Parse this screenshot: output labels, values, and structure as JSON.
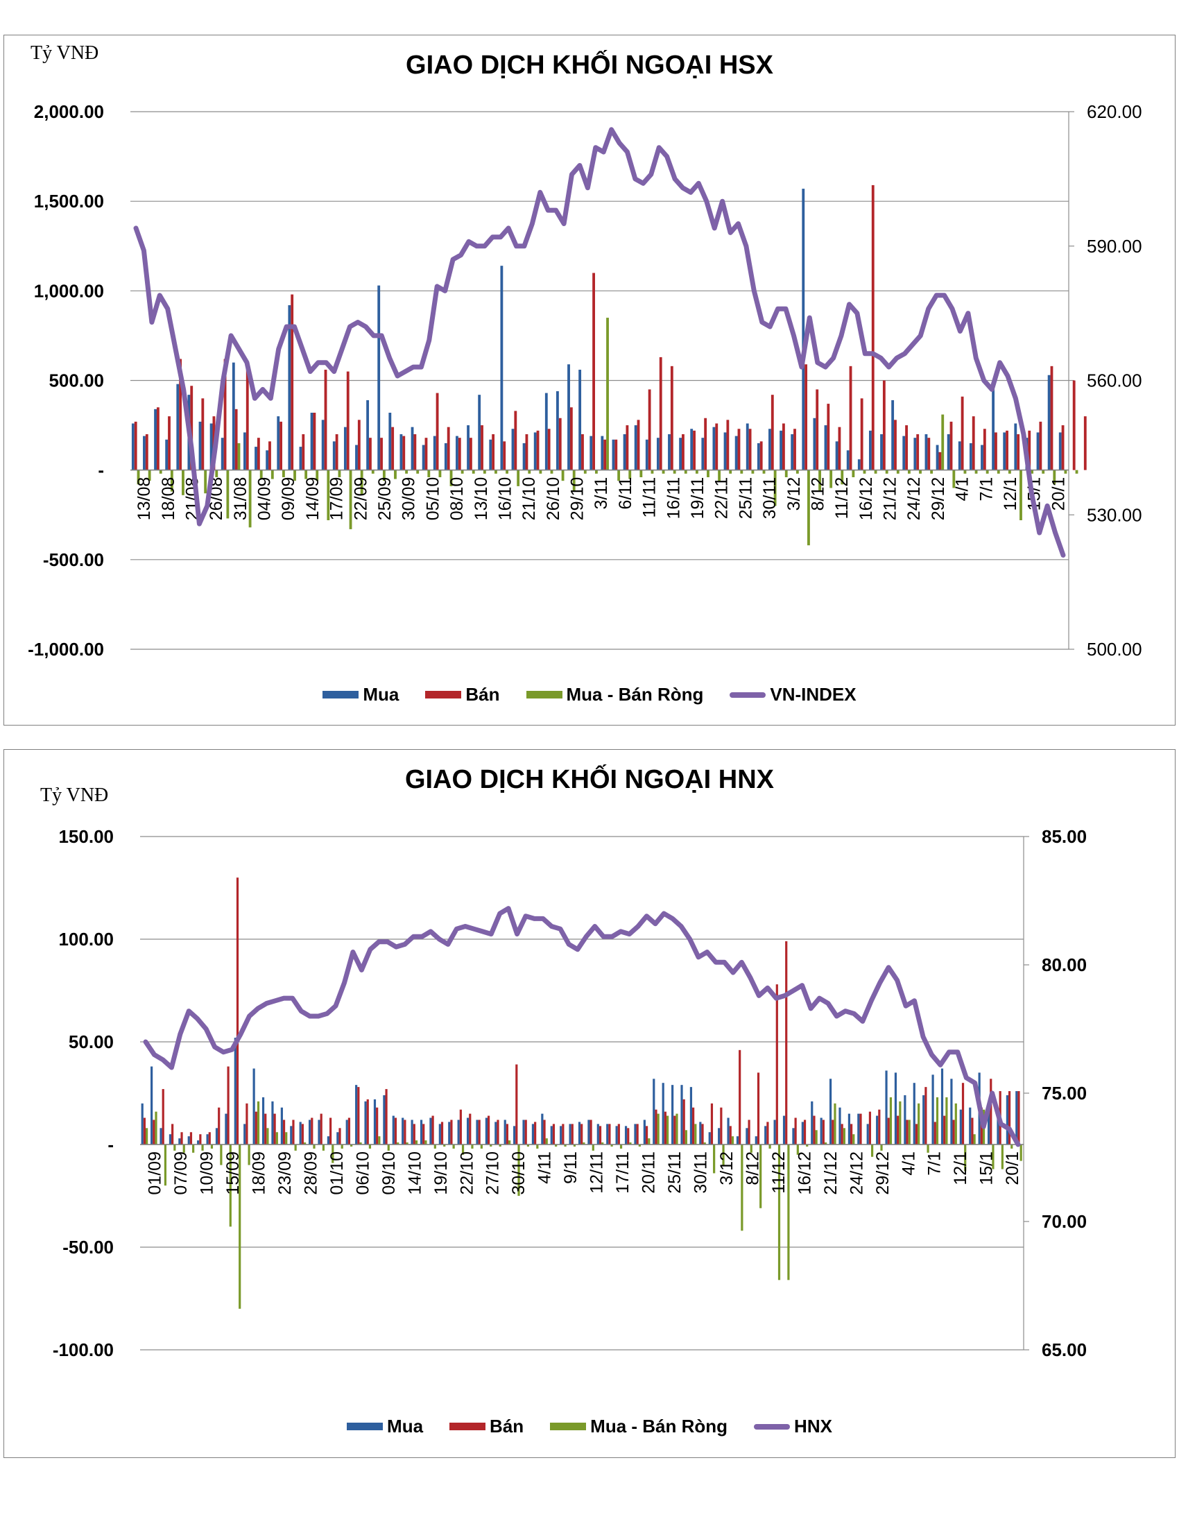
{
  "colors": {
    "buy": "#2e5f9e",
    "sell": "#b3262a",
    "net": "#7a9a2a",
    "index": "#7e62a8",
    "grid": "#8c8c8c"
  },
  "charts": [
    {
      "unit_label": "Tỷ VNĐ",
      "title": "GIAO DỊCH KHỐI NGOẠI HSX",
      "left_ticks": [
        "2,000.00",
        "1,500.00",
        "1,000.00",
        "500.00",
        "-",
        "-500.00",
        "-1,000.00"
      ],
      "right_ticks": [
        "620.00",
        "590.00",
        "560.00",
        "530.00",
        "500.00"
      ],
      "legend": {
        "buy": "Mua",
        "sell": "Bán",
        "net": "Mua - Bán Ròng",
        "index": "VN-INDEX"
      }
    },
    {
      "unit_label": "Tỷ VNĐ",
      "title": "GIAO DỊCH KHỐI NGOẠI HNX",
      "left_ticks": [
        "150.00",
        "100.00",
        "50.00",
        "-",
        "-50.00",
        "-100.00"
      ],
      "right_ticks": [
        "85.00",
        "80.00",
        "75.00",
        "70.00",
        "65.00"
      ],
      "legend": {
        "buy": "Mua",
        "sell": "Bán",
        "net": "Mua - Bán Ròng",
        "index": "HNX"
      }
    }
  ],
  "chart_data": [
    {
      "type": "bar",
      "title": "GIAO DỊCH KHỐI NGOẠI HSX",
      "ylabel": "Tỷ VNĐ",
      "ylim": [
        -1000,
        2000
      ],
      "y2lim": [
        500,
        620
      ],
      "legend_position": "bottom",
      "x_tick_labels": [
        "13/08",
        "18/08",
        "21/08",
        "26/08",
        "31/08",
        "04/09",
        "09/09",
        "14/09",
        "17/09",
        "22/09",
        "25/09",
        "30/09",
        "05/10",
        "08/10",
        "13/10",
        "16/10",
        "21/10",
        "26/10",
        "29/10",
        "3/11",
        "6/11",
        "11/11",
        "16/11",
        "19/11",
        "22/11",
        "25/11",
        "30/11",
        "3/12",
        "8/12",
        "11/12",
        "16/12",
        "21/12",
        "24/12",
        "29/12",
        "4/1",
        "7/1",
        "12/1",
        "15/1",
        "20/1"
      ],
      "series": [
        {
          "name": "Mua",
          "kind": "bar",
          "values": [
            260,
            190,
            340,
            170,
            480,
            420,
            270,
            260,
            180,
            600,
            210,
            130,
            110,
            300,
            920,
            130,
            320,
            280,
            160,
            240,
            140,
            390,
            1030,
            320,
            200,
            240,
            140,
            190,
            150,
            190,
            250,
            420,
            170,
            1140,
            230,
            150,
            210,
            430,
            440,
            590,
            560,
            190,
            190,
            170,
            200,
            250,
            170,
            180,
            200,
            180,
            230,
            180,
            240,
            210,
            190,
            260,
            150,
            230,
            220,
            200,
            1570,
            290,
            250,
            160,
            110,
            60,
            220,
            200,
            390,
            190,
            180,
            200,
            140,
            200,
            160,
            150,
            140,
            460,
            210,
            260,
            180,
            210,
            530,
            210
          ]
        },
        {
          "name": "Bán",
          "kind": "bar",
          "values": [
            270,
            200,
            350,
            300,
            620,
            470,
            400,
            300,
            620,
            340,
            590,
            180,
            160,
            270,
            980,
            200,
            320,
            560,
            200,
            550,
            280,
            180,
            180,
            240,
            190,
            200,
            180,
            430,
            240,
            180,
            180,
            250,
            200,
            160,
            330,
            200,
            220,
            230,
            290,
            350,
            200,
            1100,
            170,
            170,
            250,
            280,
            450,
            630,
            580,
            200,
            220,
            290,
            260,
            280,
            230,
            230,
            160,
            420,
            260,
            230,
            590,
            450,
            370,
            240,
            580,
            400,
            1590,
            500,
            280,
            250,
            200,
            180,
            100,
            270,
            410,
            300,
            230,
            210,
            220,
            200,
            220,
            270,
            580,
            250,
            500,
            300
          ]
        },
        {
          "name": "Mua - Bán Ròng",
          "kind": "bar",
          "values": [
            -80,
            -60,
            -20,
            -120,
            -140,
            -50,
            -130,
            -40,
            -270,
            150,
            -320,
            -50,
            -50,
            -40,
            -60,
            -50,
            -60,
            -280,
            -40,
            -330,
            -140,
            -20,
            -60,
            -50,
            -20,
            -20,
            -40,
            -40,
            -90,
            -20,
            -20,
            -20,
            -20,
            -20,
            -90,
            -20,
            -20,
            -20,
            -60,
            -120,
            -20,
            -20,
            850,
            -60,
            -50,
            -40,
            -20,
            -20,
            -20,
            -20,
            -20,
            -40,
            -60,
            -20,
            -20,
            -20,
            -20,
            -200,
            -40,
            -20,
            -420,
            -120,
            -100,
            -80,
            -40,
            -20,
            -20,
            -20,
            -20,
            -20,
            -20,
            -20,
            310,
            -100,
            -20,
            -20,
            -20,
            -20,
            -20,
            -280,
            -20,
            -20,
            -80,
            -20,
            -20
          ]
        },
        {
          "name": "VN-INDEX",
          "kind": "line",
          "axis": "right",
          "values": [
            594,
            589,
            573,
            579,
            576,
            567,
            558,
            545,
            528,
            532,
            545,
            560,
            570,
            567,
            564,
            556,
            558,
            556,
            567,
            572,
            572,
            567,
            562,
            564,
            564,
            562,
            567,
            572,
            573,
            572,
            570,
            570,
            565,
            561,
            562,
            563,
            563,
            569,
            581,
            580,
            587,
            588,
            591,
            590,
            590,
            592,
            592,
            594,
            590,
            590,
            595,
            602,
            598,
            598,
            595,
            606,
            608,
            603,
            612,
            611,
            616,
            613,
            611,
            605,
            604,
            606,
            612,
            610,
            605,
            603,
            602,
            604,
            600,
            594,
            600,
            593,
            595,
            590,
            580,
            573,
            572,
            576,
            576,
            570,
            563,
            574,
            564,
            563,
            565,
            570,
            577,
            575,
            566,
            566,
            565,
            563,
            565,
            566,
            568,
            570,
            576,
            579,
            579,
            576,
            571,
            575,
            565,
            560,
            558,
            564,
            561,
            556,
            548,
            535,
            526,
            532,
            526,
            521
          ]
        }
      ]
    },
    {
      "type": "bar",
      "title": "GIAO DỊCH KHỐI NGOẠI HNX",
      "ylabel": "Tỷ VNĐ",
      "ylim": [
        -100,
        150
      ],
      "y2lim": [
        65,
        85
      ],
      "legend_position": "bottom",
      "x_tick_labels": [
        "01/09",
        "07/09",
        "10/09",
        "15/09",
        "18/09",
        "23/09",
        "28/09",
        "01/10",
        "06/10",
        "09/10",
        "14/10",
        "19/10",
        "22/10",
        "27/10",
        "30/10",
        "4/11",
        "9/11",
        "12/11",
        "17/11",
        "20/11",
        "25/11",
        "30/11",
        "3/12",
        "8/12",
        "11/12",
        "16/12",
        "21/12",
        "24/12",
        "29/12",
        "4/1",
        "7/1",
        "12/1",
        "15/1",
        "20/1"
      ],
      "series": [
        {
          "name": "Mua",
          "kind": "bar",
          "values": [
            20,
            38,
            8,
            5,
            3,
            4,
            2,
            5,
            8,
            15,
            52,
            10,
            37,
            23,
            21,
            18,
            9,
            11,
            12,
            12,
            4,
            6,
            12,
            29,
            21,
            22,
            24,
            14,
            13,
            12,
            12,
            13,
            10,
            11,
            12,
            13,
            12,
            13,
            11,
            12,
            9,
            12,
            10,
            15,
            9,
            9,
            10,
            11,
            12,
            10,
            10,
            9,
            9,
            10,
            12,
            32,
            30,
            29,
            29,
            28,
            11,
            6,
            8,
            13,
            4,
            8,
            4,
            9,
            12,
            14,
            8,
            11,
            21,
            13,
            32,
            18,
            15,
            15,
            10,
            14,
            36,
            35,
            24,
            30,
            24,
            34,
            37,
            32,
            17,
            18,
            35,
            20,
            14,
            24,
            26
          ]
        },
        {
          "name": "Bán",
          "kind": "bar",
          "values": [
            13,
            12,
            27,
            10,
            6,
            6,
            5,
            6,
            18,
            38,
            130,
            20,
            16,
            15,
            15,
            12,
            12,
            10,
            13,
            15,
            13,
            8,
            13,
            28,
            22,
            18,
            27,
            13,
            12,
            10,
            10,
            14,
            11,
            12,
            17,
            15,
            12,
            14,
            12,
            10,
            39,
            12,
            11,
            12,
            10,
            10,
            10,
            10,
            12,
            9,
            10,
            10,
            8,
            10,
            9,
            17,
            16,
            14,
            22,
            18,
            10,
            20,
            18,
            9,
            46,
            12,
            35,
            11,
            78,
            99,
            13,
            12,
            14,
            12,
            12,
            10,
            10,
            15,
            16,
            17,
            13,
            14,
            12,
            10,
            28,
            11,
            14,
            12,
            30,
            13,
            18,
            32,
            26,
            26,
            26
          ]
        },
        {
          "name": "Mua - Bán Ròng",
          "kind": "bar",
          "values": [
            8,
            16,
            -20,
            -3,
            -4,
            -4,
            -3,
            -2,
            -10,
            -40,
            -80,
            -10,
            21,
            8,
            6,
            6,
            -3,
            1,
            -2,
            -3,
            -9,
            -2,
            -1,
            1,
            -2,
            4,
            -3,
            1,
            1,
            2,
            2,
            -2,
            -1,
            -2,
            -5,
            -2,
            -2,
            -1,
            -1,
            2,
            -25,
            -1,
            -2,
            3,
            -1,
            -1,
            -1,
            1,
            -3,
            1,
            -1,
            -2,
            1,
            -1,
            3,
            15,
            14,
            15,
            7,
            10,
            1,
            -14,
            -10,
            4,
            -42,
            -4,
            -31,
            -2,
            -66,
            -66,
            -5,
            -1,
            7,
            1,
            20,
            8,
            5,
            0,
            -6,
            -3,
            23,
            21,
            12,
            20,
            -4,
            23,
            23,
            20,
            -13,
            5,
            17,
            -12,
            -12,
            -2,
            -8
          ]
        },
        {
          "name": "HNX",
          "kind": "line",
          "axis": "right",
          "values": [
            77,
            76.5,
            76.3,
            76,
            77.3,
            78.2,
            77.9,
            77.5,
            76.8,
            76.6,
            76.7,
            77.3,
            78,
            78.3,
            78.5,
            78.6,
            78.7,
            78.7,
            78.2,
            78,
            78,
            78.1,
            78.4,
            79.3,
            80.5,
            79.8,
            80.6,
            80.9,
            80.9,
            80.7,
            80.8,
            81.1,
            81.1,
            81.3,
            81,
            80.8,
            81.4,
            81.5,
            81.4,
            81.3,
            81.2,
            82,
            82.2,
            81.2,
            81.9,
            81.8,
            81.8,
            81.5,
            81.4,
            80.8,
            80.6,
            81.1,
            81.5,
            81.1,
            81.1,
            81.3,
            81.2,
            81.5,
            81.9,
            81.6,
            82,
            81.8,
            81.5,
            81,
            80.3,
            80.5,
            80.1,
            80.1,
            79.7,
            80.1,
            79.5,
            78.8,
            79.1,
            78.7,
            78.8,
            79,
            79.2,
            78.3,
            78.7,
            78.5,
            78,
            78.2,
            78.1,
            77.8,
            78.6,
            79.3,
            79.9,
            79.4,
            78.4,
            78.6,
            77.2,
            76.5,
            76.1,
            76.6,
            76.6,
            75.6,
            75.4,
            73.7,
            75,
            73.8,
            73.6,
            73
          ]
        }
      ]
    }
  ]
}
